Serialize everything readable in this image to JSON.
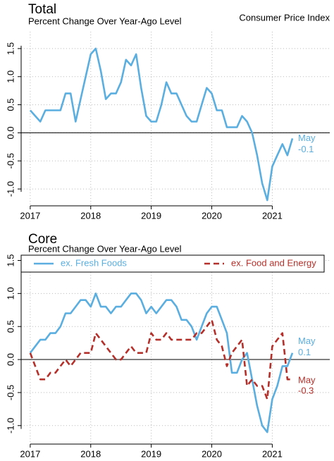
{
  "chart_data": [
    {
      "type": "line",
      "title": "Total",
      "subtitle": "Percent Change Over Year-Ago Level",
      "note": "Consumer Price Index",
      "x": [
        2017,
        2017.083,
        2017.167,
        2017.25,
        2017.333,
        2017.417,
        2017.5,
        2017.583,
        2017.667,
        2017.75,
        2017.833,
        2017.917,
        2018,
        2018.083,
        2018.167,
        2018.25,
        2018.333,
        2018.417,
        2018.5,
        2018.583,
        2018.667,
        2018.75,
        2018.833,
        2018.917,
        2019,
        2019.083,
        2019.167,
        2019.25,
        2019.333,
        2019.417,
        2019.5,
        2019.583,
        2019.667,
        2019.75,
        2019.833,
        2019.917,
        2020,
        2020.083,
        2020.167,
        2020.25,
        2020.333,
        2020.417,
        2020.5,
        2020.583,
        2020.667,
        2020.75,
        2020.833,
        2020.917,
        2021,
        2021.083,
        2021.167,
        2021.25,
        2021.333
      ],
      "series": [
        {
          "color": "#5aaee0",
          "dash": false,
          "values": [
            0.4,
            0.3,
            0.2,
            0.4,
            0.4,
            0.4,
            0.4,
            0.7,
            0.7,
            0.2,
            0.6,
            1.0,
            1.4,
            1.5,
            1.1,
            0.6,
            0.7,
            0.7,
            0.9,
            1.3,
            1.2,
            1.4,
            0.8,
            0.3,
            0.2,
            0.2,
            0.5,
            0.9,
            0.7,
            0.7,
            0.5,
            0.3,
            0.2,
            0.2,
            0.5,
            0.8,
            0.7,
            0.4,
            0.4,
            0.1,
            0.1,
            0.1,
            0.3,
            0.2,
            0.0,
            -0.4,
            -0.9,
            -1.2,
            -0.6,
            -0.4,
            -0.2,
            -0.4,
            -0.1
          ],
          "annotation": "May",
          "last_label": "-0.1"
        }
      ],
      "xlim": [
        2016.85,
        2021.95
      ],
      "xticks": [
        2017,
        2018,
        2019,
        2020,
        2021
      ],
      "ylim": [
        -1.3,
        1.8
      ],
      "yticks": [
        {
          "value": -1,
          "label": "-1.0"
        },
        -0.5,
        {
          "value": 0,
          "label": "0.0"
        },
        0.5,
        {
          "value": 1,
          "label": "1.0"
        },
        1.5
      ],
      "grid": true
    },
    {
      "type": "line",
      "title": "Core",
      "subtitle": "Percent Change Over Year-Ago Level",
      "x": [
        2017,
        2017.083,
        2017.167,
        2017.25,
        2017.333,
        2017.417,
        2017.5,
        2017.583,
        2017.667,
        2017.75,
        2017.833,
        2017.917,
        2018,
        2018.083,
        2018.167,
        2018.25,
        2018.333,
        2018.417,
        2018.5,
        2018.583,
        2018.667,
        2018.75,
        2018.833,
        2018.917,
        2019,
        2019.083,
        2019.167,
        2019.25,
        2019.333,
        2019.417,
        2019.5,
        2019.583,
        2019.667,
        2019.75,
        2019.833,
        2019.917,
        2020,
        2020.083,
        2020.167,
        2020.25,
        2020.333,
        2020.417,
        2020.5,
        2020.583,
        2020.667,
        2020.75,
        2020.833,
        2020.917,
        2021,
        2021.083,
        2021.167,
        2021.25,
        2021.333
      ],
      "series": [
        {
          "name": "ex. Fresh Foods",
          "color": "#5aaee0",
          "dash": false,
          "values": [
            0.1,
            0.2,
            0.3,
            0.3,
            0.4,
            0.4,
            0.5,
            0.7,
            0.7,
            0.8,
            0.9,
            0.9,
            0.8,
            1.0,
            0.8,
            0.8,
            0.7,
            0.8,
            0.8,
            0.9,
            1.0,
            1.0,
            0.9,
            0.7,
            0.8,
            0.7,
            0.8,
            0.9,
            0.9,
            0.8,
            0.6,
            0.6,
            0.5,
            0.3,
            0.5,
            0.7,
            0.8,
            0.8,
            0.6,
            0.4,
            -0.2,
            -0.2,
            0.0,
            0.1,
            -0.3,
            -0.7,
            -1.0,
            -1.1,
            -0.6,
            -0.4,
            -0.1,
            -0.1,
            0.1
          ],
          "annotation": "May",
          "last_label": "0.1"
        },
        {
          "name": "ex. Food and Energy",
          "color": "#b5302a",
          "dash": true,
          "values": [
            0.1,
            -0.1,
            -0.3,
            -0.3,
            -0.2,
            -0.2,
            -0.1,
            0.0,
            -0.1,
            0.0,
            0.1,
            0.1,
            0.1,
            0.4,
            0.3,
            0.2,
            0.1,
            0.0,
            0.0,
            0.1,
            0.2,
            0.1,
            0.1,
            0.1,
            0.4,
            0.3,
            0.3,
            0.4,
            0.3,
            0.3,
            0.3,
            0.3,
            0.3,
            0.4,
            0.4,
            0.5,
            0.6,
            0.3,
            0.2,
            -0.1,
            0.1,
            0.2,
            0.3,
            -0.4,
            -0.3,
            -0.4,
            -0.4,
            -0.6,
            0.2,
            0.3,
            0.4,
            -0.3,
            -0.3
          ],
          "annotation": "May",
          "last_label": "-0.3"
        }
      ],
      "xlim": [
        2016.85,
        2021.95
      ],
      "xticks": [
        2017,
        2018,
        2019,
        2020,
        2021
      ],
      "ylim": [
        -1.28,
        1.58
      ],
      "yticks": [
        {
          "value": -1,
          "label": "-1.0"
        },
        -0.5,
        {
          "value": 0,
          "label": "0.0"
        },
        0.5,
        {
          "value": 1,
          "label": "1.0"
        },
        1.5
      ],
      "grid": true,
      "legend": "top"
    }
  ]
}
